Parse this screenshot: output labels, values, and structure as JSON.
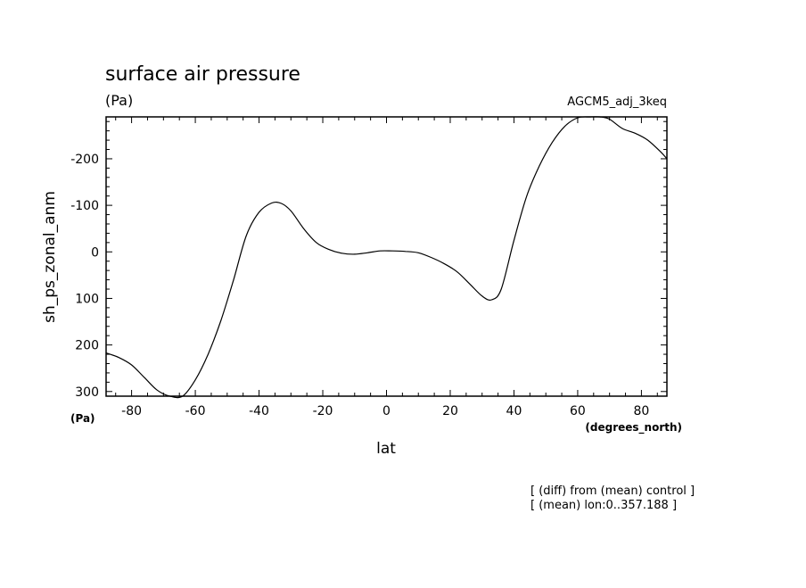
{
  "chart_data": {
    "type": "line",
    "title": "surface air pressure",
    "units": "(Pa)",
    "experiment": "AGCM5_adj_3keq",
    "ylabel": "sh_ps_zonal_anm",
    "xlabel": "lat",
    "x_units": "(degrees_north)",
    "y_units_bottom": "(Pa)",
    "notes": [
      "[ (diff) from (mean) control ]",
      "[ (mean) lon:0..357.188 ]"
    ],
    "xlim": [
      -88,
      88
    ],
    "ylim": [
      310,
      -290
    ],
    "y_inverted": true,
    "x_ticks": [
      -80,
      -60,
      -40,
      -20,
      0,
      20,
      40,
      60,
      80
    ],
    "x_tick_labels": [
      "-80",
      "-60",
      "-40",
      "-20",
      "0",
      "20",
      "40",
      "60",
      "80"
    ],
    "y_ticks": [
      -200,
      -100,
      0,
      100,
      200,
      300
    ],
    "y_tick_labels": [
      "-200",
      "-100",
      "0",
      "100",
      "200",
      "300"
    ],
    "grid": false,
    "series": [
      {
        "x": [
          -88,
          -84,
          -80,
          -76,
          -72,
          -68,
          -64,
          -60,
          -56,
          -52,
          -48,
          -44,
          -40,
          -36,
          -33,
          -30,
          -26,
          -22,
          -18,
          -14,
          -10,
          -6,
          -2,
          2,
          6,
          10,
          14,
          18,
          22,
          26,
          30,
          33,
          36,
          40,
          44,
          48,
          52,
          56,
          60,
          64,
          67,
          70,
          74,
          78,
          82,
          86,
          88
        ],
        "y": [
          217,
          227,
          243,
          270,
          297,
          316,
          312,
          275,
          220,
          148,
          60,
          -35,
          -85,
          -105,
          -104,
          -88,
          -50,
          -20,
          -5,
          3,
          5,
          2,
          -2,
          -2,
          -1,
          2,
          12,
          25,
          42,
          68,
          95,
          103,
          80,
          -25,
          -120,
          -185,
          -235,
          -270,
          -288,
          -295,
          -297,
          -285,
          -265,
          -255,
          -240,
          -215,
          -200
        ]
      }
    ]
  }
}
